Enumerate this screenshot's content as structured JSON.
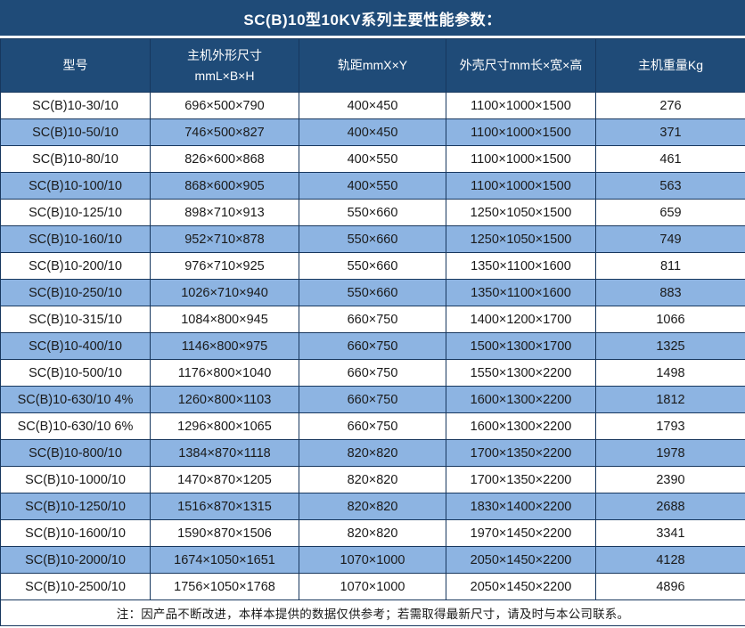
{
  "title": "SC(B)10型10KV系列主要性能参数：",
  "colors": {
    "dark_blue": "#1f4b78",
    "stripe_blue": "#8db4e2",
    "border": "#17375e",
    "text": "#1a1a1a",
    "header_text": "#ffffff"
  },
  "table": {
    "headers": [
      "型号",
      "主机外形尺寸\nmmL×B×H",
      "轨距mmX×Y",
      "外壳尺寸mm长×宽×高",
      "主机重量Kg"
    ],
    "rows": [
      [
        "SC(B)10-30/10",
        "696×500×790",
        "400×450",
        "1100×1000×1500",
        "276"
      ],
      [
        "SC(B)10-50/10",
        "746×500×827",
        "400×450",
        "1100×1000×1500",
        "371"
      ],
      [
        "SC(B)10-80/10",
        "826×600×868",
        "400×550",
        "1100×1000×1500",
        "461"
      ],
      [
        "SC(B)10-100/10",
        "868×600×905",
        "400×550",
        "1100×1000×1500",
        "563"
      ],
      [
        "SC(B)10-125/10",
        "898×710×913",
        "550×660",
        "1250×1050×1500",
        "659"
      ],
      [
        "SC(B)10-160/10",
        "952×710×878",
        "550×660",
        "1250×1050×1500",
        "749"
      ],
      [
        "SC(B)10-200/10",
        "976×710×925",
        "550×660",
        "1350×1100×1600",
        "811"
      ],
      [
        "SC(B)10-250/10",
        "1026×710×940",
        "550×660",
        "1350×1100×1600",
        "883"
      ],
      [
        "SC(B)10-315/10",
        "1084×800×945",
        "660×750",
        "1400×1200×1700",
        "1066"
      ],
      [
        "SC(B)10-400/10",
        "1146×800×975",
        "660×750",
        "1500×1300×1700",
        "1325"
      ],
      [
        "SC(B)10-500/10",
        "1176×800×1040",
        "660×750",
        "1550×1300×2200",
        "1498"
      ],
      [
        "SC(B)10-630/10 4%",
        "1260×800×1103",
        "660×750",
        "1600×1300×2200",
        "1812"
      ],
      [
        "SC(B)10-630/10 6%",
        "1296×800×1065",
        "660×750",
        "1600×1300×2200",
        "1793"
      ],
      [
        "SC(B)10-800/10",
        "1384×870×1118",
        "820×820",
        "1700×1350×2200",
        "1978"
      ],
      [
        "SC(B)10-1000/10",
        "1470×870×1205",
        "820×820",
        "1700×1350×2200",
        "2390"
      ],
      [
        "SC(B)10-1250/10",
        "1516×870×1315",
        "820×820",
        "1830×1400×2200",
        "2688"
      ],
      [
        "SC(B)10-1600/10",
        "1590×870×1506",
        "820×820",
        "1970×1450×2200",
        "3341"
      ],
      [
        "SC(B)10-2000/10",
        "1674×1050×1651",
        "1070×1000",
        "2050×1450×2200",
        "4128"
      ],
      [
        "SC(B)10-2500/10",
        "1756×1050×1768",
        "1070×1000",
        "2050×1450×2200",
        "4896"
      ]
    ],
    "note": "注：因产品不断改进，本样本提供的数据仅供参考；若需取得最新尺寸，请及时与本公司联系。"
  }
}
